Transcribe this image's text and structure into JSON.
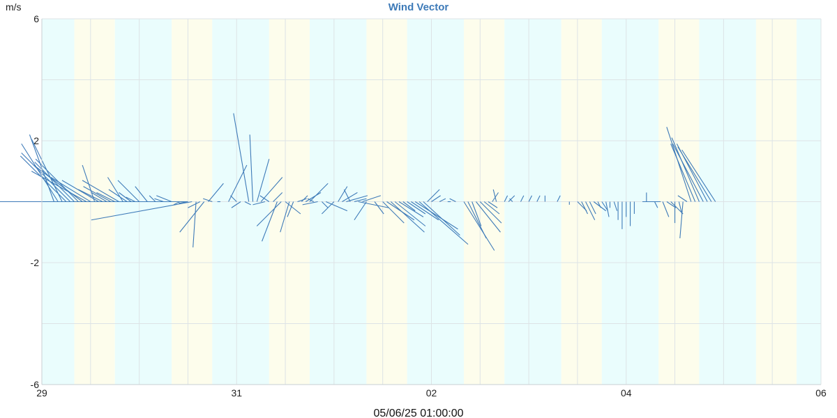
{
  "chart_data": {
    "type": "wind_vector",
    "title": "Wind Vector",
    "y_unit": "m/s",
    "ylim": [
      -6,
      6
    ],
    "y_ticks": [
      6,
      2,
      -2,
      -6
    ],
    "x_start": "2025-05-29",
    "x_end": "2025-06-06",
    "x_ticks": [
      {
        "date": "2025-05-29",
        "label": "29"
      },
      {
        "date": "2025-05-31",
        "label": "31"
      },
      {
        "date": "2025-06-02",
        "label": "02"
      },
      {
        "date": "2025-06-04",
        "label": "04"
      },
      {
        "date": "2025-06-06",
        "label": "06"
      }
    ],
    "timestamp": "05/06/25 01:00:00",
    "grid": true,
    "colors": {
      "vector": "#3d7ab8",
      "title": "#3d7ab8",
      "band_a": "#eafdfd",
      "band_b": "#fdfdec",
      "grid": "#dde3e6"
    },
    "bands": [
      {
        "start": "2025-05-29 00:00",
        "end": "2025-05-29 08:00",
        "kind": "a"
      },
      {
        "start": "2025-05-29 08:00",
        "end": "2025-05-29 18:00",
        "kind": "b"
      },
      {
        "start": "2025-05-29 18:00",
        "end": "2025-05-30 08:00",
        "kind": "a"
      },
      {
        "start": "2025-05-30 08:00",
        "end": "2025-05-30 18:00",
        "kind": "b"
      },
      {
        "start": "2025-05-30 18:00",
        "end": "2025-05-31 08:00",
        "kind": "a"
      },
      {
        "start": "2025-05-31 08:00",
        "end": "2025-05-31 18:00",
        "kind": "b"
      },
      {
        "start": "2025-05-31 18:00",
        "end": "2025-06-01 08:00",
        "kind": "a"
      },
      {
        "start": "2025-06-01 08:00",
        "end": "2025-06-01 18:00",
        "kind": "b"
      },
      {
        "start": "2025-06-01 18:00",
        "end": "2025-06-02 08:00",
        "kind": "a"
      },
      {
        "start": "2025-06-02 08:00",
        "end": "2025-06-02 18:00",
        "kind": "b"
      },
      {
        "start": "2025-06-02 18:00",
        "end": "2025-06-03 08:00",
        "kind": "a"
      },
      {
        "start": "2025-06-03 08:00",
        "end": "2025-06-03 18:00",
        "kind": "b"
      },
      {
        "start": "2025-06-03 18:00",
        "end": "2025-06-04 08:00",
        "kind": "a"
      },
      {
        "start": "2025-06-04 08:00",
        "end": "2025-06-04 18:00",
        "kind": "b"
      },
      {
        "start": "2025-06-04 18:00",
        "end": "2025-06-05 08:00",
        "kind": "a"
      },
      {
        "start": "2025-06-05 08:00",
        "end": "2025-06-05 18:00",
        "kind": "b"
      },
      {
        "start": "2025-06-05 18:00",
        "end": "2025-06-06 00:00",
        "kind": "a"
      }
    ],
    "vectors": [
      {
        "t": "2025-05-29 00:00",
        "u": -1.7,
        "v": 0.0
      },
      {
        "t": "2025-05-29 03:00",
        "u": -0.8,
        "v": 2.2
      },
      {
        "t": "2025-05-29 04:00",
        "u": -1.2,
        "v": 1.9
      },
      {
        "t": "2025-05-29 05:00",
        "u": -1.0,
        "v": 2.05
      },
      {
        "t": "2025-05-29 06:00",
        "u": -1.5,
        "v": 1.5
      },
      {
        "t": "2025-05-29 07:00",
        "u": -1.6,
        "v": 1.6
      },
      {
        "t": "2025-05-29 08:00",
        "u": -1.3,
        "v": 1.3
      },
      {
        "t": "2025-05-29 09:00",
        "u": -1.4,
        "v": 1.4
      },
      {
        "t": "2025-05-29 10:00",
        "u": -1.6,
        "v": 1.2
      },
      {
        "t": "2025-05-29 11:00",
        "u": -1.8,
        "v": 1.0
      },
      {
        "t": "2025-05-29 12:00",
        "u": -1.3,
        "v": 0.8
      },
      {
        "t": "2025-05-29 13:00",
        "u": -0.4,
        "v": 1.2
      },
      {
        "t": "2025-05-29 14:00",
        "u": -1.2,
        "v": 0.7
      },
      {
        "t": "2025-05-29 15:00",
        "u": -0.8,
        "v": 0.4
      },
      {
        "t": "2025-05-29 16:00",
        "u": -0.5,
        "v": 0.3
      },
      {
        "t": "2025-05-29 17:00",
        "u": -0.9,
        "v": 0.5
      },
      {
        "t": "2025-05-29 18:00",
        "u": -0.6,
        "v": 0.3
      },
      {
        "t": "2025-05-29 19:00",
        "u": -1.2,
        "v": 0.7
      },
      {
        "t": "2025-05-29 20:00",
        "u": -0.5,
        "v": 0.8
      },
      {
        "t": "2025-05-29 21:00",
        "u": -0.6,
        "v": 0.4
      },
      {
        "t": "2025-05-29 22:00",
        "u": -0.4,
        "v": 0.3
      },
      {
        "t": "2025-05-29 23:00",
        "u": -0.3,
        "v": 0.15
      },
      {
        "t": "2025-05-30 00:00",
        "u": -0.7,
        "v": 0.7
      },
      {
        "t": "2025-05-30 02:00",
        "u": -0.4,
        "v": 0.5
      },
      {
        "t": "2025-05-30 04:00",
        "u": -0.2,
        "v": 0.2
      },
      {
        "t": "2025-05-30 06:00",
        "u": -0.3,
        "v": 0.1
      },
      {
        "t": "2025-05-30 08:00",
        "u": -0.5,
        "v": 0.2
      },
      {
        "t": "2025-05-30 10:00",
        "u": -0.2,
        "v": -0.1
      },
      {
        "t": "2025-05-30 12:00",
        "u": -0.3,
        "v": -0.05
      },
      {
        "t": "2025-05-30 13:00",
        "u": -3.3,
        "v": -0.6
      },
      {
        "t": "2025-05-30 14:00",
        "u": -0.1,
        "v": -1.5
      },
      {
        "t": "2025-05-30 15:00",
        "u": -0.4,
        "v": -0.2
      },
      {
        "t": "2025-05-30 16:00",
        "u": -0.8,
        "v": -1.0
      },
      {
        "t": "2025-05-30 17:00",
        "u": 0.5,
        "v": 0.6
      },
      {
        "t": "2025-05-30 18:00",
        "u": -0.3,
        "v": 0.1
      },
      {
        "t": "2025-05-30 20:00",
        "u": -0.1,
        "v": 0.0
      },
      {
        "t": "2025-05-30 22:00",
        "u": 0.6,
        "v": 1.2
      },
      {
        "t": "2025-05-31 00:00",
        "u": -0.2,
        "v": 0.2
      },
      {
        "t": "2025-05-31 01:00",
        "u": -0.3,
        "v": -0.2
      },
      {
        "t": "2025-05-31 02:00",
        "u": 0.2,
        "v": -0.1
      },
      {
        "t": "2025-05-31 03:00",
        "u": -0.5,
        "v": 2.9
      },
      {
        "t": "2025-05-31 04:00",
        "u": -0.1,
        "v": 2.2
      },
      {
        "t": "2025-05-31 05:00",
        "u": 0.4,
        "v": 1.4
      },
      {
        "t": "2025-05-31 06:00",
        "u": 0.7,
        "v": 0.8
      },
      {
        "t": "2025-05-31 07:00",
        "u": -0.4,
        "v": -0.1
      },
      {
        "t": "2025-05-31 08:00",
        "u": -0.3,
        "v": 0.2
      },
      {
        "t": "2025-05-31 09:00",
        "u": 0.3,
        "v": 0.3
      },
      {
        "t": "2025-05-31 10:00",
        "u": -0.5,
        "v": -1.3
      },
      {
        "t": "2025-05-31 11:00",
        "u": -0.8,
        "v": -0.8
      },
      {
        "t": "2025-05-31 12:00",
        "u": 0.5,
        "v": -0.4
      },
      {
        "t": "2025-05-31 13:00",
        "u": -0.3,
        "v": -1.0
      },
      {
        "t": "2025-05-31 14:00",
        "u": -0.2,
        "v": -0.5
      },
      {
        "t": "2025-05-31 15:00",
        "u": 0.3,
        "v": 0.1
      },
      {
        "t": "2025-05-31 16:00",
        "u": 0.2,
        "v": 0.2
      },
      {
        "t": "2025-05-31 17:00",
        "u": 0.5,
        "v": 0.3
      },
      {
        "t": "2025-05-31 18:00",
        "u": 0.6,
        "v": 0.6
      },
      {
        "t": "2025-05-31 19:00",
        "u": -0.2,
        "v": 0.1
      },
      {
        "t": "2025-05-31 20:00",
        "u": -0.5,
        "v": -0.1
      },
      {
        "t": "2025-05-31 21:00",
        "u": 0.2,
        "v": -0.2
      },
      {
        "t": "2025-05-31 22:00",
        "u": 0.7,
        "v": -0.3
      },
      {
        "t": "2025-06-01 00:00",
        "u": -0.4,
        "v": -0.4
      },
      {
        "t": "2025-06-01 01:00",
        "u": 0.3,
        "v": 0.5
      },
      {
        "t": "2025-06-01 02:00",
        "u": 0.5,
        "v": 0.3
      },
      {
        "t": "2025-06-01 03:00",
        "u": 0.7,
        "v": 0.2
      },
      {
        "t": "2025-06-01 04:00",
        "u": -0.2,
        "v": 0.4
      },
      {
        "t": "2025-06-01 05:00",
        "u": 0.4,
        "v": 0.1
      },
      {
        "t": "2025-06-01 06:00",
        "u": 1.0,
        "v": -0.2
      },
      {
        "t": "2025-06-01 07:00",
        "u": 0.6,
        "v": 0.2
      },
      {
        "t": "2025-06-01 08:00",
        "u": -0.4,
        "v": -0.6
      },
      {
        "t": "2025-06-01 10:00",
        "u": 0.3,
        "v": -0.4
      },
      {
        "t": "2025-06-01 12:00",
        "u": 0.7,
        "v": -0.7
      },
      {
        "t": "2025-06-01 13:00",
        "u": 0.9,
        "v": -0.6
      },
      {
        "t": "2025-06-01 14:00",
        "u": 1.1,
        "v": -1.0
      },
      {
        "t": "2025-06-01 15:00",
        "u": 1.0,
        "v": -0.8
      },
      {
        "t": "2025-06-01 16:00",
        "u": 0.8,
        "v": -0.5
      },
      {
        "t": "2025-06-01 17:00",
        "u": 0.4,
        "v": -0.3
      },
      {
        "t": "2025-06-01 18:00",
        "u": 0.6,
        "v": -0.4
      },
      {
        "t": "2025-06-01 19:00",
        "u": 0.9,
        "v": -0.6
      },
      {
        "t": "2025-06-01 20:00",
        "u": 1.4,
        "v": -0.9
      },
      {
        "t": "2025-06-01 21:00",
        "u": 1.6,
        "v": -1.4
      },
      {
        "t": "2025-06-01 22:00",
        "u": 1.2,
        "v": -1.1
      },
      {
        "t": "2025-06-01 23:00",
        "u": 0.4,
        "v": 0.4
      },
      {
        "t": "2025-06-02 00:00",
        "u": 0.3,
        "v": 0.2
      },
      {
        "t": "2025-06-02 02:00",
        "u": 0.2,
        "v": 0.1
      },
      {
        "t": "2025-06-02 04:00",
        "u": 0.1,
        "v": 0.0
      },
      {
        "t": "2025-06-02 06:00",
        "u": -0.2,
        "v": 0.1
      },
      {
        "t": "2025-06-02 08:00",
        "u": 1.0,
        "v": -1.6
      },
      {
        "t": "2025-06-02 09:00",
        "u": 0.6,
        "v": -1.2
      },
      {
        "t": "2025-06-02 10:00",
        "u": 0.3,
        "v": -0.8
      },
      {
        "t": "2025-06-02 11:00",
        "u": 0.8,
        "v": -1.0
      },
      {
        "t": "2025-06-02 12:00",
        "u": 0.7,
        "v": -0.7
      },
      {
        "t": "2025-06-02 13:00",
        "u": 0.5,
        "v": -0.4
      },
      {
        "t": "2025-06-02 14:00",
        "u": 0.3,
        "v": -0.2
      },
      {
        "t": "2025-06-02 15:00",
        "u": 0.2,
        "v": 0.3
      },
      {
        "t": "2025-06-02 16:00",
        "u": -0.1,
        "v": 0.4
      },
      {
        "t": "2025-06-02 18:00",
        "u": 0.1,
        "v": 0.2
      },
      {
        "t": "2025-06-02 19:00",
        "u": 0.2,
        "v": 0.2
      },
      {
        "t": "2025-06-02 20:00",
        "u": -0.1,
        "v": 0.1
      },
      {
        "t": "2025-06-02 22:00",
        "u": 0.1,
        "v": 0.2
      },
      {
        "t": "2025-06-03 00:00",
        "u": 0.1,
        "v": 0.2
      },
      {
        "t": "2025-06-03 02:00",
        "u": 0.1,
        "v": 0.2
      },
      {
        "t": "2025-06-03 04:00",
        "u": 0.0,
        "v": 0.2
      },
      {
        "t": "2025-06-03 07:00",
        "u": 0.1,
        "v": 0.2
      },
      {
        "t": "2025-06-03 10:00",
        "u": 0.0,
        "v": -0.1
      },
      {
        "t": "2025-06-03 12:00",
        "u": 0.3,
        "v": -0.3
      },
      {
        "t": "2025-06-03 13:00",
        "u": 0.2,
        "v": -0.4
      },
      {
        "t": "2025-06-03 14:00",
        "u": 0.3,
        "v": -0.6
      },
      {
        "t": "2025-06-03 15:00",
        "u": 0.2,
        "v": -0.4
      },
      {
        "t": "2025-06-03 16:00",
        "u": 0.4,
        "v": -0.3
      },
      {
        "t": "2025-06-03 17:00",
        "u": 0.1,
        "v": -0.2
      },
      {
        "t": "2025-06-03 18:00",
        "u": 0.2,
        "v": -0.3
      },
      {
        "t": "2025-06-03 19:00",
        "u": 0.1,
        "v": -0.5
      },
      {
        "t": "2025-06-03 20:00",
        "u": 0.0,
        "v": -0.2
      },
      {
        "t": "2025-06-03 21:00",
        "u": 0.1,
        "v": -0.3
      },
      {
        "t": "2025-06-03 22:00",
        "u": 0.0,
        "v": -0.6
      },
      {
        "t": "2025-06-03 23:00",
        "u": 0.0,
        "v": -0.9
      },
      {
        "t": "2025-06-04 00:00",
        "u": 0.0,
        "v": -0.5
      },
      {
        "t": "2025-06-04 01:00",
        "u": 0.0,
        "v": -0.8
      },
      {
        "t": "2025-06-04 02:00",
        "u": 0.0,
        "v": -0.4
      },
      {
        "t": "2025-06-04 04:00",
        "u": 0.6,
        "v": 0.0
      },
      {
        "t": "2025-06-04 05:00",
        "u": 0.0,
        "v": 0.3
      },
      {
        "t": "2025-06-04 07:00",
        "u": 0.1,
        "v": -0.2
      },
      {
        "t": "2025-06-04 09:00",
        "u": 0.2,
        "v": -0.5
      },
      {
        "t": "2025-06-04 10:00",
        "u": 0.3,
        "v": -0.2
      },
      {
        "t": "2025-06-04 11:00",
        "u": 0.4,
        "v": -0.4
      },
      {
        "t": "2025-06-04 12:00",
        "u": 0.0,
        "v": -0.7
      },
      {
        "t": "2025-06-04 13:00",
        "u": 0.1,
        "v": -0.4
      },
      {
        "t": "2025-06-04 14:00",
        "u": -0.1,
        "v": -1.2
      },
      {
        "t": "2025-06-04 15:00",
        "u": -0.3,
        "v": 0.2
      },
      {
        "t": "2025-06-04 16:00",
        "u": -0.8,
        "v": 2.45
      },
      {
        "t": "2025-06-04 17:00",
        "u": -0.8,
        "v": 1.9
      },
      {
        "t": "2025-06-04 18:00",
        "u": -0.9,
        "v": 2.1
      },
      {
        "t": "2025-06-04 19:00",
        "u": -1.0,
        "v": 1.9
      },
      {
        "t": "2025-06-04 20:00",
        "u": -1.0,
        "v": 1.9
      },
      {
        "t": "2025-06-04 21:00",
        "u": -1.1,
        "v": 1.8
      },
      {
        "t": "2025-06-04 22:00",
        "u": -1.1,
        "v": 1.7
      }
    ]
  }
}
